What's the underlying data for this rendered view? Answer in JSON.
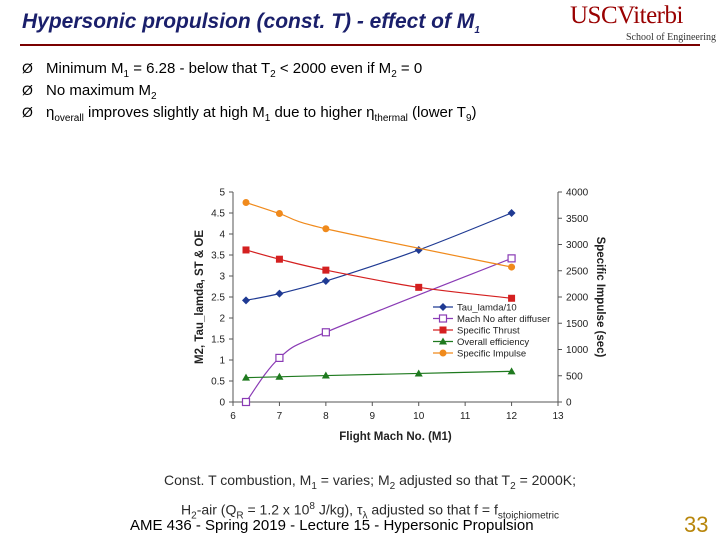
{
  "title": "Hypersonic propulsion (const. T) - effect of M",
  "title_sub": "1",
  "logo": {
    "main": "USCViterbi",
    "sub": "School of Engineering"
  },
  "bullets": [
    {
      "marker": "Ø",
      "parts": [
        "Minimum M",
        "1",
        " = 6.28 - below that T",
        "2",
        " < 2000 even if M",
        "2",
        " = 0"
      ]
    },
    {
      "marker": "Ø",
      "parts": [
        "No maximum M",
        "2"
      ]
    },
    {
      "marker": "Ø",
      "parts": [
        "η",
        "overall",
        " improves slightly at high M",
        "1",
        " due to higher η",
        "thermal",
        " (lower T",
        "9",
        ")"
      ]
    }
  ],
  "caption": {
    "line1": [
      "Const. T combustion, M",
      "1",
      " = varies; M",
      "2",
      " adjusted so that T",
      "2",
      " = 2000K;"
    ],
    "line2": [
      "H",
      "2",
      "-air (Q",
      "R",
      " = 1.2 x 10",
      "8",
      " J/kg), τ",
      "λ",
      " adjusted so that f = f",
      "stoichiometric"
    ]
  },
  "footer": "AME 436 - Spring 2019 - Lecture 15 - Hypersonic Propulsion",
  "page_number": "33",
  "colors": {
    "title": "#1a1f6b",
    "logo": "#990000",
    "page_number": "#b8860b"
  },
  "chart_data": {
    "type": "line",
    "xlabel": "Flight Mach No. (M1)",
    "ylabel": "M2, Tau_lamda, ST & OE",
    "y2label": "Specific Impulse (sec)",
    "xlim": [
      6,
      13
    ],
    "ylim": [
      0,
      5
    ],
    "y2lim": [
      0,
      4000
    ],
    "xticks": [
      "6",
      "7",
      "8",
      "9",
      "10",
      "11",
      "12",
      "13"
    ],
    "yticks": [
      "0",
      "0.5",
      "1",
      "1.5",
      "2",
      "2.5",
      "3",
      "3.5",
      "4",
      "4.5",
      "5"
    ],
    "y2ticks": [
      "0",
      "500",
      "1000",
      "1500",
      "2000",
      "2500",
      "3000",
      "3500",
      "4000"
    ],
    "legend_position": "bottom-right",
    "series": [
      {
        "name": "Tau_lamda/10",
        "color": "#1f3a93",
        "marker": "diamond",
        "axis": "left",
        "x": [
          6.28,
          7,
          8,
          10,
          12
        ],
        "y": [
          2.42,
          2.58,
          2.88,
          3.62,
          4.5
        ]
      },
      {
        "name": "Mach No after diffuser",
        "color": "#8a3bb5",
        "marker": "square-open",
        "axis": "left",
        "x": [
          6.28,
          7,
          8,
          12
        ],
        "y": [
          0,
          1.05,
          1.66,
          3.42
        ]
      },
      {
        "name": "Specific Thrust",
        "color": "#d42020",
        "marker": "square",
        "axis": "left",
        "x": [
          6.28,
          7,
          8,
          10,
          12
        ],
        "y": [
          3.62,
          3.4,
          3.14,
          2.73,
          2.47
        ]
      },
      {
        "name": "Overall efficiency",
        "color": "#1f7a1f",
        "marker": "triangle",
        "axis": "left",
        "x": [
          6.28,
          7,
          8,
          10,
          12
        ],
        "y": [
          0.58,
          0.6,
          0.63,
          0.68,
          0.73
        ]
      },
      {
        "name": "Specific Impulse",
        "color": "#f08a1c",
        "marker": "circle",
        "axis": "right",
        "x": [
          6.28,
          7,
          8,
          12
        ],
        "y": [
          3800,
          3590,
          3300,
          2570
        ]
      }
    ]
  }
}
